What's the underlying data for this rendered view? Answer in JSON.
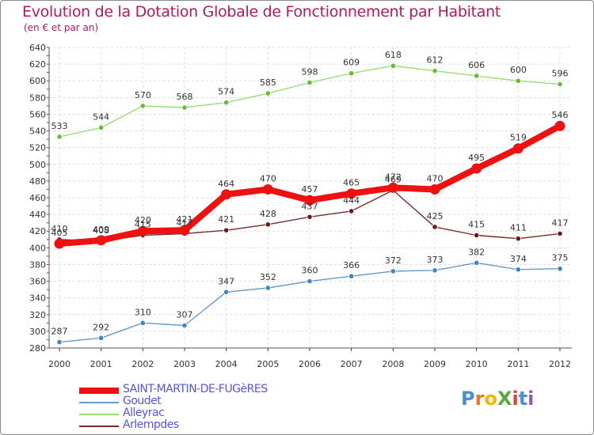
{
  "title": "Evolution de la Dotation Globale de Fonctionnement par Habitant",
  "subtitle": "(en € et par an)",
  "logo": {
    "text": "ProXiti",
    "colors": [
      "#4a8fd4",
      "#e8732a",
      "#f0b800",
      "#5aaa3a",
      "#e0403a",
      "#4a8fd4",
      "#8a5ac8"
    ]
  },
  "chart_data": {
    "type": "line",
    "x": [
      "2000",
      "2001",
      "2002",
      "2003",
      "2004",
      "2005",
      "2006",
      "2007",
      "2008",
      "2009",
      "2010",
      "2011",
      "2012"
    ],
    "ylim": [
      280,
      640
    ],
    "yticks": [
      280,
      300,
      320,
      340,
      360,
      380,
      400,
      420,
      440,
      460,
      480,
      500,
      520,
      540,
      560,
      580,
      600,
      620,
      640
    ],
    "grid": true,
    "legend_position": "bottom-left",
    "series": [
      {
        "name": "SAINT-MARTIN-DE-FUGèRES",
        "color": "#ee1111",
        "marker_color": "#ee1111",
        "values": [
          405,
          409,
          420,
          421,
          464,
          470,
          457,
          465,
          472,
          470,
          495,
          519,
          546
        ]
      },
      {
        "name": "Goudet",
        "color": "#6699cc",
        "marker_color": "#3d85c6",
        "values": [
          287,
          292,
          310,
          307,
          347,
          352,
          360,
          366,
          372,
          373,
          382,
          374,
          375
        ]
      },
      {
        "name": "Alleyrac",
        "color": "#99dd77",
        "marker_color": "#66bb33",
        "values": [
          533,
          544,
          570,
          568,
          574,
          585,
          598,
          609,
          618,
          612,
          606,
          600,
          596
        ]
      },
      {
        "name": "Arlempdes",
        "color": "#7a2a2a",
        "marker_color": "#6a1a1a",
        "values": [
          410,
          408,
          415,
          417,
          421,
          428,
          437,
          444,
          469,
          425,
          415,
          411,
          417
        ]
      }
    ]
  }
}
